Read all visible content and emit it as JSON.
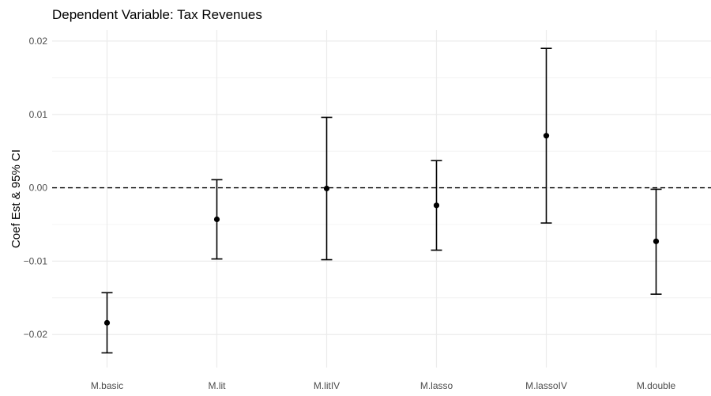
{
  "chart_data": {
    "type": "errorbar",
    "title": "Dependent Variable: Tax Revenues",
    "xlabel": "",
    "ylabel": "Coef Est & 95% CI",
    "categories": [
      "M.basic",
      "M.lit",
      "M.litIV",
      "M.lasso",
      "M.lassoIV",
      "M.double"
    ],
    "series": [
      {
        "estimate": [
          -0.0184,
          -0.0043,
          -0.0001,
          -0.0024,
          0.0071,
          -0.0073
        ],
        "lower": [
          -0.0225,
          -0.0097,
          -0.0098,
          -0.0085,
          -0.0048,
          -0.0145
        ],
        "upper": [
          -0.0143,
          0.0011,
          0.0096,
          0.0037,
          0.019,
          -0.0002
        ]
      }
    ],
    "ylim": [
      -0.0245,
      0.0215
    ],
    "yticks": [
      0.02,
      0.01,
      0.0,
      -0.01,
      -0.02
    ],
    "ytick_labels": [
      "0.02",
      "0.01",
      "0.00",
      "−0.01",
      "−0.02"
    ],
    "reference_line": {
      "y": 0,
      "style": "dashed"
    },
    "grid": true,
    "colors": {
      "grid": "#ebebeb",
      "marks": "#000000",
      "tick_text": "#4d4d4d"
    }
  }
}
